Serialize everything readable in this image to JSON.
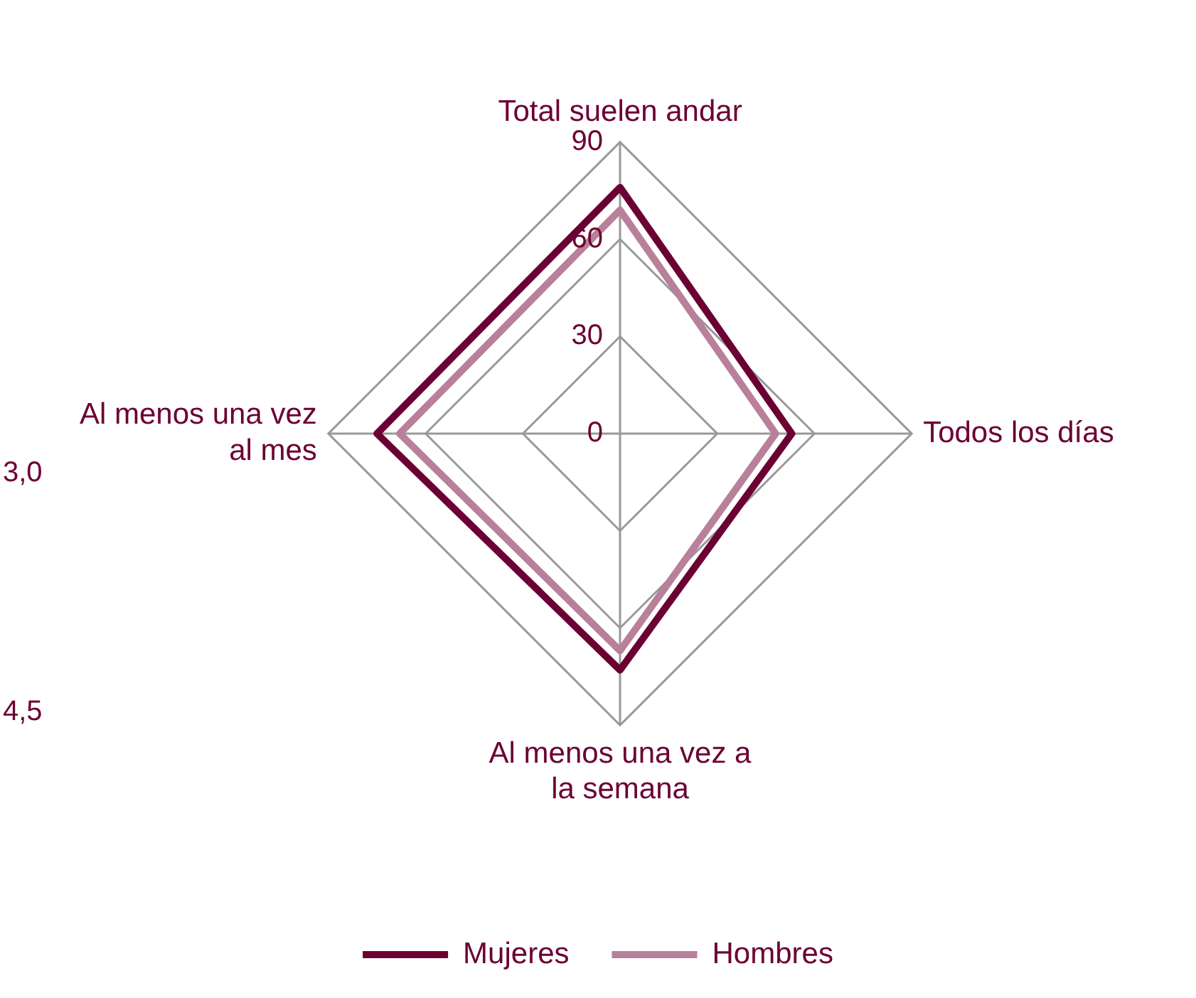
{
  "chart_data": {
    "type": "radar",
    "categories": [
      "Total suelen andar",
      "Todos los días",
      "Al menos una vez a la semana",
      "Al menos una vez al mes"
    ],
    "series": [
      {
        "name": "Mujeres",
        "color": "#6b0033",
        "values": [
          76,
          53,
          73,
          75
        ]
      },
      {
        "name": "Hombres",
        "color": "#b8809a",
        "values": [
          69,
          48,
          67,
          68
        ]
      }
    ],
    "ylim": [
      0,
      90
    ],
    "yticks": [
      0,
      30,
      60,
      90
    ],
    "grid": true,
    "legend": "bottom",
    "marker": "none",
    "line_style": "solid",
    "annotations": [
      "3,0",
      "4,5"
    ]
  }
}
